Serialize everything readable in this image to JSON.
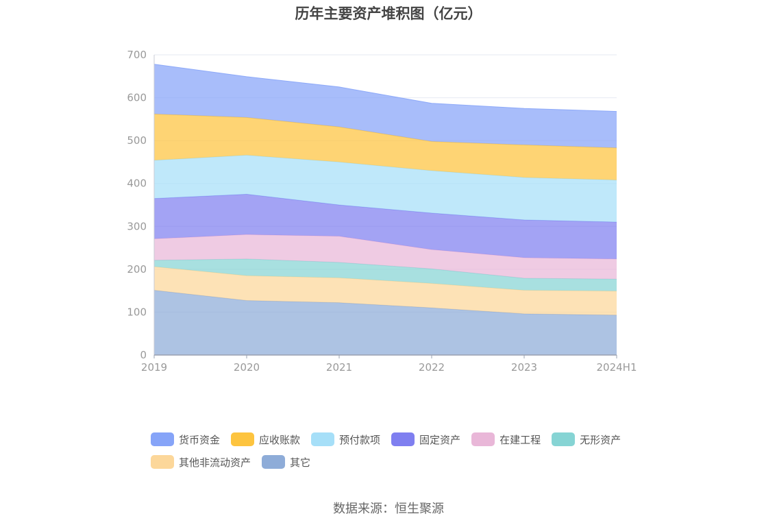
{
  "chart_data": {
    "type": "area",
    "stacked": true,
    "title": "历年主要资产堆积图（亿元）",
    "x": [
      "2019",
      "2020",
      "2021",
      "2022",
      "2023",
      "2024H1"
    ],
    "ylim": [
      0,
      700
    ],
    "yticks": [
      "0",
      "100",
      "200",
      "300",
      "400",
      "500",
      "600",
      "700"
    ],
    "grid": true,
    "legend_position": "bottom",
    "series": [
      {
        "name": "其它",
        "color": "#8eacd8",
        "values": [
          151,
          127,
          122,
          110,
          96,
          93
        ]
      },
      {
        "name": "其他非流动资产",
        "color": "#fcd79a",
        "values": [
          55,
          58,
          58,
          57,
          55,
          56
        ]
      },
      {
        "name": "无形资产",
        "color": "#86d4d4",
        "values": [
          15,
          39,
          36,
          34,
          28,
          28
        ]
      },
      {
        "name": "在建工程",
        "color": "#e9b7d8",
        "values": [
          50,
          57,
          61,
          45,
          48,
          47
        ]
      },
      {
        "name": "固定资产",
        "color": "#7f7ff0",
        "values": [
          94,
          94,
          73,
          85,
          88,
          86
        ]
      },
      {
        "name": "预付款项",
        "color": "#a6dff8",
        "values": [
          89,
          91,
          100,
          99,
          99,
          98
        ]
      },
      {
        "name": "应收账款",
        "color": "#fdc43f",
        "values": [
          108,
          88,
          82,
          68,
          76,
          75
        ]
      },
      {
        "name": "货币资金",
        "color": "#86a4f8",
        "values": [
          116,
          95,
          93,
          89,
          85,
          85
        ]
      }
    ],
    "legend_order": [
      "货币资金",
      "应收账款",
      "预付款项",
      "固定资产",
      "在建工程",
      "无形资产",
      "其他非流动资产",
      "其它"
    ]
  },
  "source": "数据来源：恒生聚源"
}
